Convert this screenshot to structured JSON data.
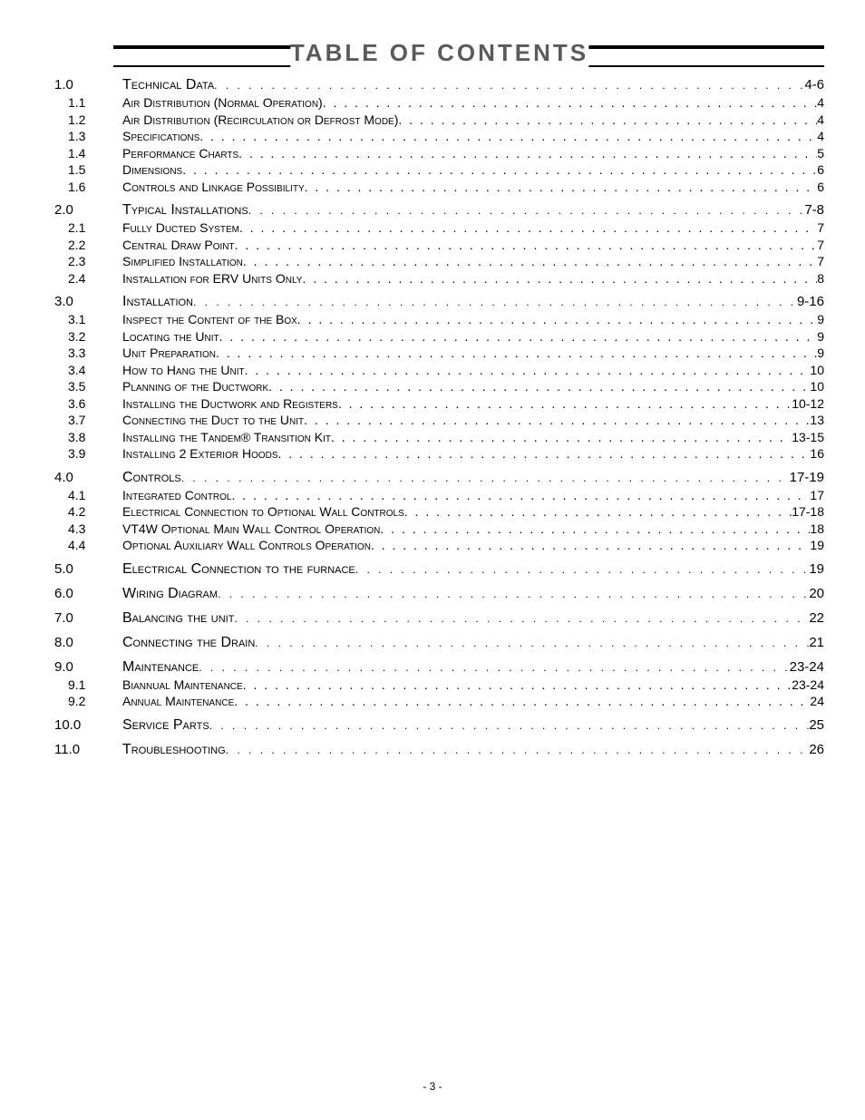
{
  "title": "TABLE OF CONTENTS",
  "footer_page_number": "- 3 -",
  "title_color": "#5a5a5a",
  "text_color": "#000000",
  "background_color": "#ffffff",
  "rule_top_width": 4,
  "rule_bottom_width": 2,
  "toc_entries": [
    {
      "level": 1,
      "number": "1.0",
      "title": "Technical Data",
      "page": "4-6"
    },
    {
      "level": 2,
      "number": "1.1",
      "title": "Air Distribution (Normal Operation)",
      "page": "4"
    },
    {
      "level": 2,
      "number": "1.2",
      "title": "Air Distribution (Recirculation or Defrost Mode)",
      "page": "4"
    },
    {
      "level": 2,
      "number": "1.3",
      "title": "Specifications",
      "page": "4"
    },
    {
      "level": 2,
      "number": "1.4",
      "title": "Performance Charts",
      "page": "5"
    },
    {
      "level": 2,
      "number": "1.5",
      "title": "Dimensions",
      "page": "6"
    },
    {
      "level": 2,
      "number": "1.6",
      "title": "Controls and Linkage Possibility",
      "page": "6"
    },
    {
      "level": 1,
      "number": "2.0",
      "title": "Typical Installations",
      "page": "7-8"
    },
    {
      "level": 2,
      "number": "2.1",
      "title": "Fully Ducted System",
      "page": "7"
    },
    {
      "level": 2,
      "number": "2.2",
      "title": "Central Draw Point",
      "page": "7"
    },
    {
      "level": 2,
      "number": "2.3",
      "title": "Simplified Installation",
      "page": "7"
    },
    {
      "level": 2,
      "number": "2.4",
      "title": "Installation for ERV Units Only",
      "page": "8"
    },
    {
      "level": 1,
      "number": "3.0",
      "title": "Installation",
      "page": "9-16"
    },
    {
      "level": 2,
      "number": "3.1",
      "title": "Inspect the Content of the Box",
      "page": "9"
    },
    {
      "level": 2,
      "number": "3.2",
      "title": "Locating the Unit",
      "page": "9"
    },
    {
      "level": 2,
      "number": "3.3",
      "title": "Unit Preparation",
      "page": "9"
    },
    {
      "level": 2,
      "number": "3.4",
      "title": "How to Hang the Unit",
      "page": "10"
    },
    {
      "level": 2,
      "number": "3.5",
      "title": "Planning of the Ductwork",
      "page": "10"
    },
    {
      "level": 2,
      "number": "3.6",
      "title": "Installing the Ductwork and Registers",
      "page": "10-12"
    },
    {
      "level": 2,
      "number": "3.7",
      "title": "Connecting the Duct to the Unit",
      "page": "13"
    },
    {
      "level": 2,
      "number": "3.8",
      "title": "Installing the Tandem® Transition Kit",
      "page": "13-15"
    },
    {
      "level": 2,
      "number": "3.9",
      "title": "Installing 2 Exterior Hoods",
      "page": "16"
    },
    {
      "level": 1,
      "number": "4.0",
      "title": "Controls",
      "page": "17-19"
    },
    {
      "level": 2,
      "number": "4.1",
      "title": "Integrated Control",
      "page": "17"
    },
    {
      "level": 2,
      "number": "4.2",
      "title": "Electrical Connection to Optional Wall Controls",
      "page": "17-18"
    },
    {
      "level": 2,
      "number": "4.3",
      "title": "VT4W Optional Main Wall Control Operation",
      "page": "18"
    },
    {
      "level": 2,
      "number": "4.4",
      "title": "Optional Auxiliary Wall Controls Operation",
      "page": "19"
    },
    {
      "level": 1,
      "number": "5.0",
      "title": "Electrical Connection to the furnace",
      "page": "19"
    },
    {
      "level": 1,
      "number": "6.0",
      "title": "Wiring Diagram",
      "page": "20"
    },
    {
      "level": 1,
      "number": "7.0",
      "title": "Balancing the unit",
      "page": "22"
    },
    {
      "level": 1,
      "number": "8.0",
      "title": "Connecting the Drain",
      "page": "21"
    },
    {
      "level": 1,
      "number": "9.0",
      "title": "Maintenance",
      "page": "23-24"
    },
    {
      "level": 2,
      "number": "9.1",
      "title": "Biannual Maintenance",
      "page": "23-24"
    },
    {
      "level": 2,
      "number": "9.2",
      "title": "Annual Maintenance",
      "page": "24"
    },
    {
      "level": 1,
      "number": "10.0",
      "title": "Service Parts",
      "page": "25"
    },
    {
      "level": 1,
      "number": "11.0",
      "title": "Troubleshooting",
      "page": "26"
    }
  ]
}
